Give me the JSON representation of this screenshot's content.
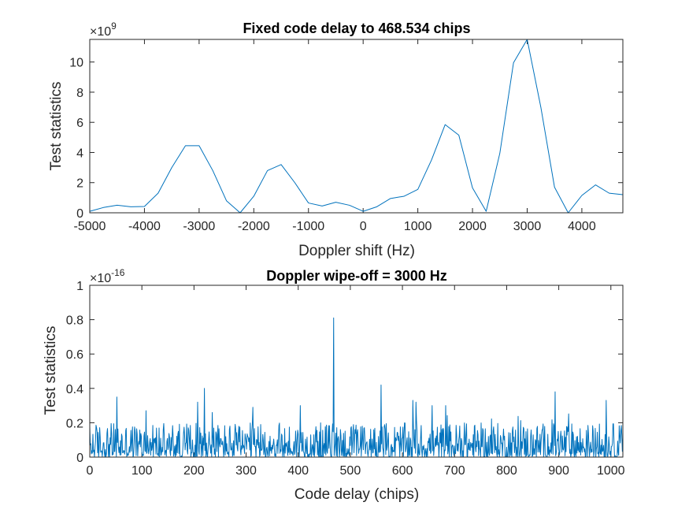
{
  "chart_data": [
    {
      "type": "line",
      "title": "Fixed code delay to 468.534 chips",
      "xlabel": "Doppler shift (Hz)",
      "ylabel": "Test statistics",
      "exponent_base": "×10",
      "exponent_power": "9",
      "xlim": [
        -5000,
        4750
      ],
      "ylim": [
        0,
        11.5
      ],
      "xticks": [
        -5000,
        -4000,
        -3000,
        -2000,
        -1000,
        0,
        1000,
        2000,
        3000,
        4000
      ],
      "xtick_labels": [
        "-5000",
        "-4000",
        "-3000",
        "-2000",
        "-1000",
        "0",
        "1000",
        "2000",
        "3000",
        "4000"
      ],
      "yticks": [
        0,
        2,
        4,
        6,
        8,
        10
      ],
      "ytick_labels": [
        "0",
        "2",
        "4",
        "6",
        "8",
        "10"
      ],
      "grid": false,
      "line_color": "#0072BD",
      "series": [
        {
          "x": [
            -5000,
            -4750,
            -4500,
            -4250,
            -4000,
            -3750,
            -3500,
            -3250,
            -3000,
            -2750,
            -2500,
            -2250,
            -2000,
            -1750,
            -1500,
            -1250,
            -1000,
            -750,
            -500,
            -250,
            0,
            250,
            500,
            750,
            1000,
            1250,
            1500,
            1750,
            2000,
            2250,
            2500,
            2750,
            3000,
            3250,
            3500,
            3750,
            4000,
            4250,
            4500,
            4750
          ],
          "y": [
            0.1,
            0.35,
            0.5,
            0.4,
            0.42,
            1.3,
            3.0,
            4.45,
            4.45,
            2.8,
            0.8,
            0.0,
            1.1,
            2.8,
            3.2,
            2.0,
            0.65,
            0.45,
            0.7,
            0.5,
            0.1,
            0.4,
            0.95,
            1.1,
            1.55,
            3.5,
            5.85,
            5.15,
            1.65,
            0.1,
            3.95,
            9.95,
            11.5,
            7.0,
            1.7,
            0.0,
            1.15,
            1.85,
            1.3,
            1.2
          ]
        }
      ]
    },
    {
      "type": "line",
      "title": "Doppler wipe-off = 3000 Hz",
      "xlabel": "Code delay (chips)",
      "ylabel": "Test statistics",
      "exponent_base": "×10",
      "exponent_power": "-16",
      "xlim": [
        0,
        1023
      ],
      "ylim": [
        0,
        1
      ],
      "xticks": [
        0,
        100,
        200,
        300,
        400,
        500,
        600,
        700,
        800,
        900,
        1000
      ],
      "xtick_labels": [
        "0",
        "100",
        "200",
        "300",
        "400",
        "500",
        "600",
        "700",
        "800",
        "900",
        "1000"
      ],
      "yticks": [
        0,
        0.2,
        0.4,
        0.6,
        0.8,
        1
      ],
      "ytick_labels": [
        "0",
        "0.2",
        "0.4",
        "0.6",
        "0.8",
        "1"
      ],
      "grid": false,
      "line_color": "#0072BD",
      "series": [
        {
          "x_start": 0,
          "x_step": 1,
          "noise_baseline": 0.06,
          "peaks": [
            [
              52,
              0.35
            ],
            [
              220,
              0.4
            ],
            [
              207,
              0.32
            ],
            [
              468,
              0.81
            ],
            [
              559,
              0.42
            ],
            [
              620,
              0.33
            ],
            [
              626,
              0.32
            ],
            [
              657,
              0.3
            ],
            [
              683,
              0.3
            ],
            [
              893,
              0.38
            ],
            [
              991,
              0.33
            ],
            [
              313,
              0.29
            ],
            [
              404,
              0.3
            ],
            [
              108,
              0.27
            ],
            [
              235,
              0.26
            ]
          ]
        }
      ]
    }
  ]
}
